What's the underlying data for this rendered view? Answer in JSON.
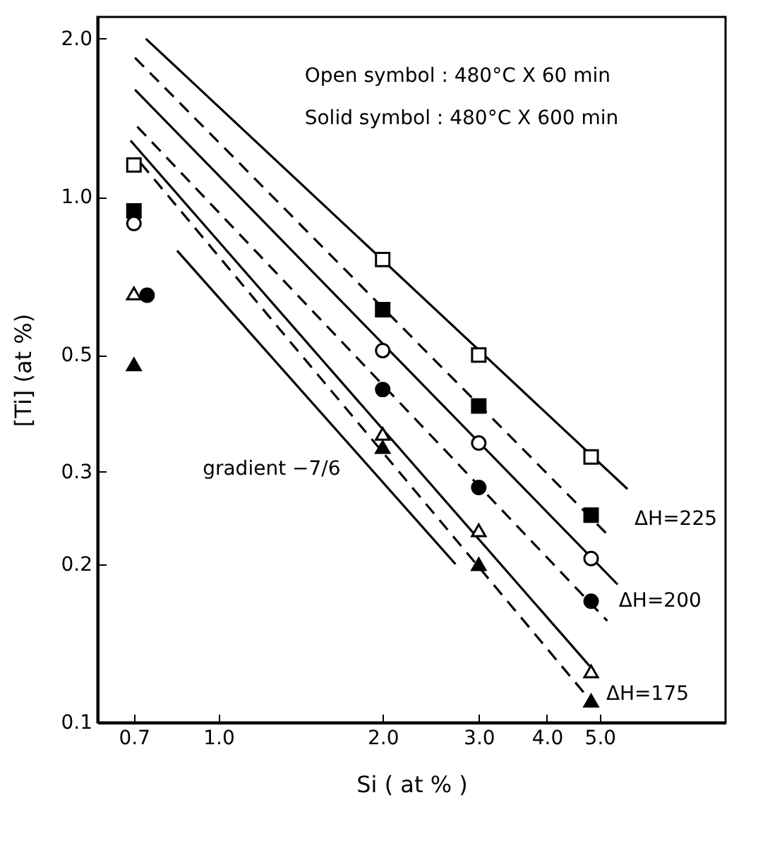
{
  "chart_data": {
    "type": "scatter",
    "xlabel": "Si ( at % )",
    "ylabel": "[Ti]  (at %)",
    "log": "xy",
    "xlim": [
      0.6,
      8.5
    ],
    "ylim": [
      0.1,
      2.2
    ],
    "xticks": [
      0.7,
      {
        "value": 1,
        "label": "1.0"
      },
      {
        "value": 2,
        "label": "2.0"
      },
      {
        "value": 3,
        "label": "3.0"
      },
      {
        "value": 4,
        "label": "4.0"
      },
      {
        "value": 5,
        "label": "5.0"
      }
    ],
    "yticks": [
      0.1,
      0.2,
      0.3,
      0.5,
      {
        "value": 1,
        "label": "1.0"
      },
      {
        "value": 2,
        "label": "2.0"
      }
    ],
    "grid": false,
    "series": [
      {
        "marker": "square",
        "color": "#ffffff",
        "x": [
          0.7,
          2.0,
          3.0,
          4.82
        ],
        "values": [
          1.15,
          0.76,
          0.5,
          0.32
        ]
      },
      {
        "marker": "square",
        "color": "#000000",
        "x": [
          0.7,
          2.0,
          3.0,
          4.82
        ],
        "values": [
          0.94,
          0.61,
          0.4,
          0.248
        ]
      },
      {
        "marker": "circle",
        "color": "#ffffff",
        "x": [
          0.7,
          2.0,
          3.0,
          4.82
        ],
        "values": [
          0.89,
          0.51,
          0.34,
          0.205
        ]
      },
      {
        "marker": "circle",
        "color": "#000000",
        "x": [
          0.74,
          2.0,
          3.0,
          4.82
        ],
        "values": [
          0.65,
          0.43,
          0.28,
          0.17
        ]
      },
      {
        "marker": "triangle",
        "color": "#ffffff",
        "x": [
          0.7,
          2.0,
          3.0,
          4.82
        ],
        "values": [
          0.655,
          0.354,
          0.232,
          0.125
        ]
      },
      {
        "marker": "triangle",
        "color": "#000000",
        "x": [
          0.7,
          2.0,
          3.0,
          4.82
        ],
        "values": [
          0.48,
          0.334,
          0.2,
          0.11
        ]
      },
      {
        "type": "line",
        "line_style": "solid",
        "color": "#000000",
        "x": [
          0.736,
          5.62
        ],
        "values": [
          2.0,
          0.278
        ]
      },
      {
        "type": "line",
        "line_style": "dashed",
        "color": "#000000",
        "x": [
          0.703,
          5.16
        ],
        "values": [
          1.84,
          0.228
        ]
      },
      {
        "type": "line",
        "line_style": "solid",
        "color": "#000000",
        "x": [
          0.703,
          5.39
        ],
        "values": [
          1.6,
          0.183
        ]
      },
      {
        "type": "line",
        "line_style": "dashed",
        "color": "#000000",
        "x": [
          0.71,
          5.16
        ],
        "values": [
          1.36,
          0.156
        ]
      },
      {
        "type": "line",
        "line_style": "solid",
        "color": "#000000",
        "x": [
          0.69,
          4.79
        ],
        "values": [
          1.28,
          0.128
        ]
      },
      {
        "type": "line",
        "line_style": "dashed",
        "color": "#000000",
        "x": [
          0.72,
          4.74
        ],
        "values": [
          1.16,
          0.112
        ]
      },
      {
        "type": "line",
        "line_style": "solid",
        "color": "#000000",
        "x": [
          0.84,
          2.72
        ],
        "values": [
          0.79,
          0.2
        ]
      }
    ],
    "annotations": [
      "Open symbol : 480°C X 60 min",
      "Solid symbol : 480°C X 600 min",
      {
        "text": "gradient −7/6",
        "x": 1.82,
        "y": 0.315
      },
      "ΔH=225",
      "ΔH=200",
      "ΔH=175"
    ]
  }
}
